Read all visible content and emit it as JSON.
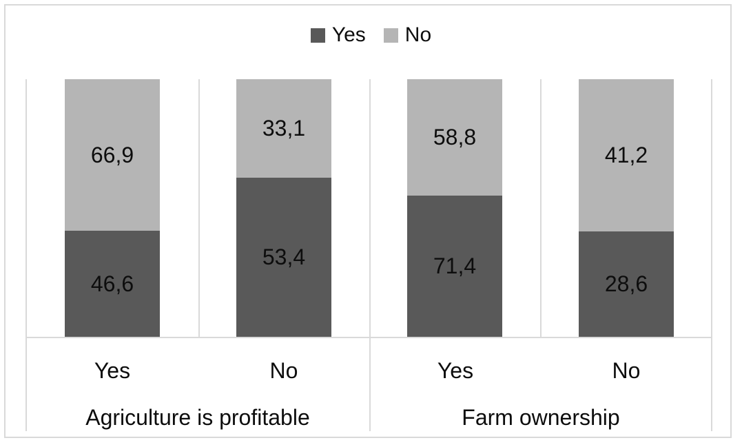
{
  "chart_data": {
    "type": "bar",
    "subtype": "stacked-100-percent-column",
    "title": "",
    "legend": {
      "position": "top",
      "entries": [
        "Yes",
        "No"
      ]
    },
    "colors": {
      "yes": "#595959",
      "no": "#b5b5b5",
      "gridline": "#d9d9d9"
    },
    "categories": [
      "Yes",
      "No",
      "Yes",
      "No"
    ],
    "groups": [
      {
        "label": "Agriculture is profitable",
        "categories": [
          "Yes",
          "No"
        ]
      },
      {
        "label": "Farm ownership",
        "categories": [
          "Yes",
          "No"
        ]
      }
    ],
    "series": [
      {
        "name": "Yes",
        "color": "#595959",
        "values": [
          46.6,
          53.4,
          71.4,
          28.6
        ]
      },
      {
        "name": "No",
        "color": "#b5b5b5",
        "values": [
          66.9,
          33.1,
          58.8,
          41.2
        ]
      }
    ],
    "bars": [
      {
        "group": "Agriculture is profitable",
        "category": "Yes",
        "yes": 46.6,
        "no": 66.9,
        "yes_label": "46,6",
        "no_label": "66,9"
      },
      {
        "group": "Agriculture is profitable",
        "category": "No",
        "yes": 53.4,
        "no": 33.1,
        "yes_label": "53,4",
        "no_label": "33,1"
      },
      {
        "group": "Farm ownership",
        "category": "Yes",
        "yes": 71.4,
        "no": 58.8,
        "yes_label": "71,4",
        "no_label": "58,8"
      },
      {
        "group": "Farm ownership",
        "category": "No",
        "yes": 28.6,
        "no": 41.2,
        "yes_label": "28,6",
        "no_label": "41,2"
      }
    ],
    "value_label_decimal_separator": ",",
    "axis": {
      "y_hidden": true,
      "ylim_percent": [
        0,
        100
      ],
      "gridlines": "category-dividers-only"
    }
  }
}
